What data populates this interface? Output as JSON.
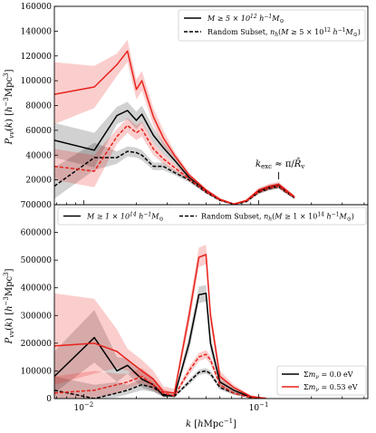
{
  "chart_data": [
    {
      "type": "line",
      "x_scale": "log",
      "xlim": [
        0.0068,
        0.42
      ],
      "ylim": [
        0,
        160000
      ],
      "yticks": [
        20000,
        40000,
        60000,
        80000,
        100000,
        120000,
        140000,
        160000
      ],
      "ylabel": "P_vv(k) [h^-3 Mpc^3]",
      "legend_position": "upper-right",
      "legend": [
        {
          "label": "M ≥ 5 × 10¹² h⁻¹M⊙",
          "style": "solid"
        },
        {
          "label": "Random Subset, n_h(M ≥ 5 × 10¹² h⁻¹M⊙)",
          "style": "dashed"
        }
      ],
      "annotation": "k_exc ≈ π/R̄_v",
      "annotation_k": 0.13,
      "series": [
        {
          "model": "0.0eV",
          "subset": "mass",
          "color": "#000000",
          "dash": "solid",
          "x": [
            0.0068,
            0.0115,
            0.0155,
            0.0178,
            0.02,
            0.0215,
            0.025,
            0.0285,
            0.033,
            0.04,
            0.05,
            0.06,
            0.072,
            0.085,
            0.1,
            0.115,
            0.13,
            0.14,
            0.16
          ],
          "y": [
            52000,
            44000,
            72000,
            76000,
            68000,
            73000,
            56000,
            46000,
            36000,
            22000,
            11000,
            4000,
            500,
            3000,
            11000,
            14000,
            15500,
            12000,
            6000
          ],
          "band_lo": [
            38000,
            30000,
            65000,
            69000,
            61000,
            66000,
            50000,
            41000,
            33000,
            20000,
            10000,
            3500,
            300,
            2500,
            9500,
            12000,
            13500,
            10500,
            5000
          ],
          "band_hi": [
            66000,
            58000,
            79000,
            83000,
            75000,
            80000,
            62000,
            51000,
            39000,
            24000,
            12000,
            4500,
            700,
            3500,
            12500,
            16000,
            17500,
            13500,
            7000
          ]
        },
        {
          "model": "0.0eV",
          "subset": "random",
          "color": "#000000",
          "dash": "dashed",
          "x": [
            0.0068,
            0.0115,
            0.0155,
            0.0178,
            0.02,
            0.0215,
            0.025,
            0.0285,
            0.033,
            0.04,
            0.05,
            0.06,
            0.072,
            0.085,
            0.1,
            0.115,
            0.13,
            0.14,
            0.16
          ],
          "y": [
            15000,
            38000,
            38000,
            43000,
            42000,
            40000,
            31000,
            31000,
            26000,
            20000,
            10000,
            3500,
            400,
            2500,
            10000,
            13000,
            14500,
            11000,
            5500
          ],
          "band_lo": [
            5000,
            28000,
            33000,
            39000,
            38000,
            36000,
            28000,
            28000,
            24000,
            18000,
            9000,
            3000,
            200,
            2000,
            8500,
            11500,
            13000,
            9500,
            4500
          ],
          "band_hi": [
            30000,
            50000,
            43000,
            47000,
            46000,
            44000,
            34000,
            34000,
            28000,
            22000,
            11000,
            4000,
            600,
            3000,
            11500,
            14500,
            16000,
            12500,
            6500
          ]
        },
        {
          "model": "0.53eV",
          "subset": "mass",
          "color": "#e8221b",
          "dash": "solid",
          "x": [
            0.0068,
            0.0115,
            0.0155,
            0.0178,
            0.02,
            0.0215,
            0.025,
            0.0285,
            0.033,
            0.04,
            0.05,
            0.06,
            0.072,
            0.085,
            0.1,
            0.115,
            0.13,
            0.14,
            0.16
          ],
          "y": [
            89000,
            95000,
            113000,
            124000,
            93000,
            100000,
            71000,
            54000,
            40000,
            24000,
            12000,
            4500,
            600,
            3500,
            12000,
            15000,
            16500,
            13000,
            6500
          ],
          "band_lo": [
            65000,
            78000,
            104000,
            115000,
            85000,
            92000,
            64000,
            48000,
            37000,
            22000,
            11000,
            4000,
            400,
            3000,
            10500,
            13000,
            14500,
            11500,
            5500
          ],
          "band_hi": [
            115000,
            112000,
            122000,
            133000,
            101000,
            108000,
            78000,
            60000,
            43000,
            26000,
            13000,
            5000,
            800,
            4000,
            13500,
            17000,
            18500,
            14500,
            7500
          ]
        },
        {
          "model": "0.53eV",
          "subset": "random",
          "color": "#e8221b",
          "dash": "dashed",
          "x": [
            0.0068,
            0.0115,
            0.0155,
            0.0178,
            0.02,
            0.0215,
            0.025,
            0.0285,
            0.033,
            0.04,
            0.05,
            0.06,
            0.072,
            0.085,
            0.1,
            0.115,
            0.13,
            0.14,
            0.16
          ],
          "y": [
            31000,
            27000,
            55000,
            64000,
            58000,
            61000,
            45000,
            37000,
            30000,
            21000,
            10500,
            3800,
            450,
            2800,
            10500,
            13500,
            15000,
            11500,
            5800
          ],
          "band_lo": [
            20000,
            14000,
            49000,
            58000,
            52000,
            55000,
            40000,
            33000,
            27000,
            19000,
            9500,
            3300,
            250,
            2300,
            9000,
            12000,
            13500,
            10000,
            4800
          ],
          "band_hi": [
            45000,
            40000,
            61000,
            70000,
            64000,
            67000,
            50000,
            41000,
            33000,
            23000,
            11500,
            4300,
            650,
            3300,
            12000,
            15000,
            16500,
            13000,
            6800
          ]
        }
      ]
    },
    {
      "type": "line",
      "x_scale": "log",
      "xlim": [
        0.0068,
        0.42
      ],
      "xticks": [
        0.01,
        0.1
      ],
      "xtick_labels": [
        "10⁻²",
        "10⁻¹"
      ],
      "ylim": [
        0,
        700000
      ],
      "yticks": [
        0,
        100000,
        200000,
        300000,
        400000,
        500000,
        600000,
        700000
      ],
      "xlabel": "k [hMpc⁻¹]",
      "ylabel": "P_vv(k) [h^-3 Mpc^3]",
      "legend_position": "top",
      "legend": [
        {
          "label": "M ≥ 1 × 10¹⁴ h⁻¹M⊙",
          "style": "solid"
        },
        {
          "label": "Random Subset, n_h(M ≥ 1 × 10¹⁴ h⁻¹M⊙)",
          "style": "dashed"
        }
      ],
      "legend2_position": "lower-right",
      "legend2": [
        {
          "label": "Σm_ν = 0.0 eV",
          "color": "#000000"
        },
        {
          "label": "Σm_ν = 0.53 eV",
          "color": "#e8221b"
        }
      ],
      "series": [
        {
          "model": "0.0eV",
          "subset": "mass",
          "color": "#000000",
          "dash": "solid",
          "x": [
            0.0068,
            0.0115,
            0.0155,
            0.0178,
            0.0215,
            0.025,
            0.0285,
            0.033,
            0.04,
            0.0455,
            0.05,
            0.053,
            0.06,
            0.072,
            0.09,
            0.11
          ],
          "y": [
            80000,
            220000,
            100000,
            120000,
            70000,
            50000,
            10000,
            10000,
            200000,
            375000,
            380000,
            200000,
            60000,
            30000,
            5000,
            1000
          ],
          "band_lo": [
            20000,
            130000,
            60000,
            90000,
            40000,
            25000,
            5000,
            5000,
            170000,
            345000,
            350000,
            170000,
            45000,
            22000,
            3000,
            500
          ],
          "band_hi": [
            170000,
            320000,
            150000,
            145000,
            100000,
            75000,
            18000,
            16000,
            230000,
            405000,
            410000,
            230000,
            75000,
            38000,
            8000,
            2000
          ]
        },
        {
          "model": "0.0eV",
          "subset": "random",
          "color": "#000000",
          "dash": "dashed",
          "x": [
            0.0068,
            0.0115,
            0.0155,
            0.0178,
            0.0215,
            0.025,
            0.0285,
            0.033,
            0.04,
            0.0455,
            0.05,
            0.053,
            0.06,
            0.072,
            0.09,
            0.11
          ],
          "y": [
            30000,
            0,
            20000,
            30000,
            50000,
            40000,
            15000,
            8000,
            60000,
            95000,
            100000,
            90000,
            40000,
            20000,
            3000,
            500
          ],
          "band_lo": [
            0,
            0,
            5000,
            15000,
            30000,
            25000,
            8000,
            4000,
            50000,
            85000,
            90000,
            80000,
            32000,
            14000,
            2000,
            200
          ],
          "band_hi": [
            80000,
            50000,
            60000,
            50000,
            70000,
            55000,
            22000,
            12000,
            70000,
            105000,
            110000,
            100000,
            48000,
            26000,
            5000,
            1000
          ]
        },
        {
          "model": "0.53eV",
          "subset": "mass",
          "color": "#e8221b",
          "dash": "solid",
          "x": [
            0.0068,
            0.0115,
            0.0155,
            0.0178,
            0.0215,
            0.025,
            0.0285,
            0.033,
            0.04,
            0.0455,
            0.05,
            0.053,
            0.06,
            0.072,
            0.09,
            0.11
          ],
          "y": [
            190000,
            200000,
            170000,
            140000,
            100000,
            70000,
            25000,
            20000,
            300000,
            510000,
            520000,
            300000,
            80000,
            40000,
            8000,
            1000
          ],
          "band_lo": [
            50000,
            90000,
            110000,
            100000,
            70000,
            40000,
            10000,
            8000,
            265000,
            475000,
            485000,
            265000,
            60000,
            30000,
            5000,
            500
          ],
          "band_hi": [
            380000,
            360000,
            250000,
            180000,
            140000,
            100000,
            45000,
            35000,
            335000,
            545000,
            555000,
            335000,
            100000,
            50000,
            12000,
            2000
          ]
        },
        {
          "model": "0.53eV",
          "subset": "random",
          "color": "#e8221b",
          "dash": "dashed",
          "x": [
            0.0068,
            0.0115,
            0.0155,
            0.0178,
            0.0215,
            0.025,
            0.0285,
            0.033,
            0.04,
            0.0455,
            0.05,
            0.053,
            0.06,
            0.072,
            0.09,
            0.11
          ],
          "y": [
            20000,
            30000,
            50000,
            60000,
            80000,
            50000,
            20000,
            10000,
            100000,
            150000,
            160000,
            140000,
            50000,
            20000,
            4000,
            500
          ],
          "band_lo": [
            0,
            0,
            20000,
            35000,
            55000,
            30000,
            10000,
            5000,
            85000,
            135000,
            145000,
            125000,
            40000,
            14000,
            2000,
            200
          ],
          "band_hi": [
            80000,
            100000,
            90000,
            90000,
            110000,
            75000,
            35000,
            18000,
            115000,
            165000,
            175000,
            155000,
            60000,
            26000,
            6000,
            1000
          ]
        }
      ]
    }
  ],
  "text": {
    "top_yticks": [
      "20000",
      "40000",
      "60000",
      "80000",
      "100000",
      "120000",
      "140000",
      "160000"
    ],
    "top_y0_label": "700000",
    "bottom_yticks": [
      "0",
      "100000",
      "200000",
      "300000",
      "400000",
      "500000",
      "600000"
    ],
    "xtick_0": "10⁻²",
    "xtick_1": "10⁻¹"
  }
}
